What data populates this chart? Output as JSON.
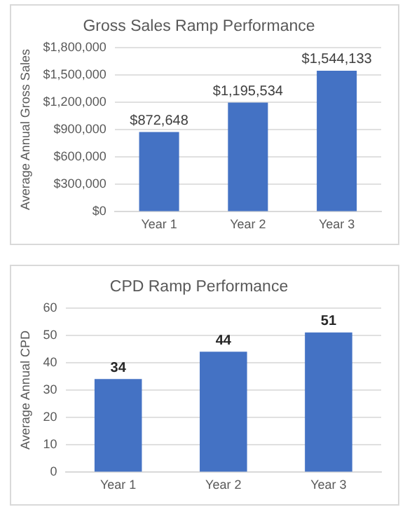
{
  "chart_data": [
    {
      "type": "bar",
      "title": "Gross Sales Ramp Performance",
      "ylabel": "Average Annual Gross Sales",
      "categories": [
        "Year 1",
        "Year 2",
        "Year 3"
      ],
      "values": [
        872648,
        1195534,
        1544133
      ],
      "color": "#4472c4",
      "value_labels": [
        "$872,648",
        "$1,195,534",
        "$1,544,133"
      ],
      "ylim": [
        0,
        1800000
      ],
      "yticks": [
        {
          "value": 0,
          "label": "$0"
        },
        {
          "value": 300000,
          "label": "$300,000"
        },
        {
          "value": 600000,
          "label": "$600,000"
        },
        {
          "value": 900000,
          "label": "$900,000"
        },
        {
          "value": 1200000,
          "label": "$1,200,000"
        },
        {
          "value": 1500000,
          "label": "$1,500,000"
        },
        {
          "value": 1800000,
          "label": "$1,800,000"
        }
      ],
      "grid": "y"
    },
    {
      "type": "bar",
      "title": "CPD Ramp Performance",
      "ylabel": "Average Annual CPD",
      "categories": [
        "Year 1",
        "Year 2",
        "Year 3"
      ],
      "values": [
        34,
        44,
        51
      ],
      "color": "#4472c4",
      "data_labels": true,
      "ylim": [
        0,
        60
      ],
      "yticks": [
        0,
        10,
        20,
        30,
        40,
        50,
        60
      ],
      "grid": "y"
    }
  ]
}
